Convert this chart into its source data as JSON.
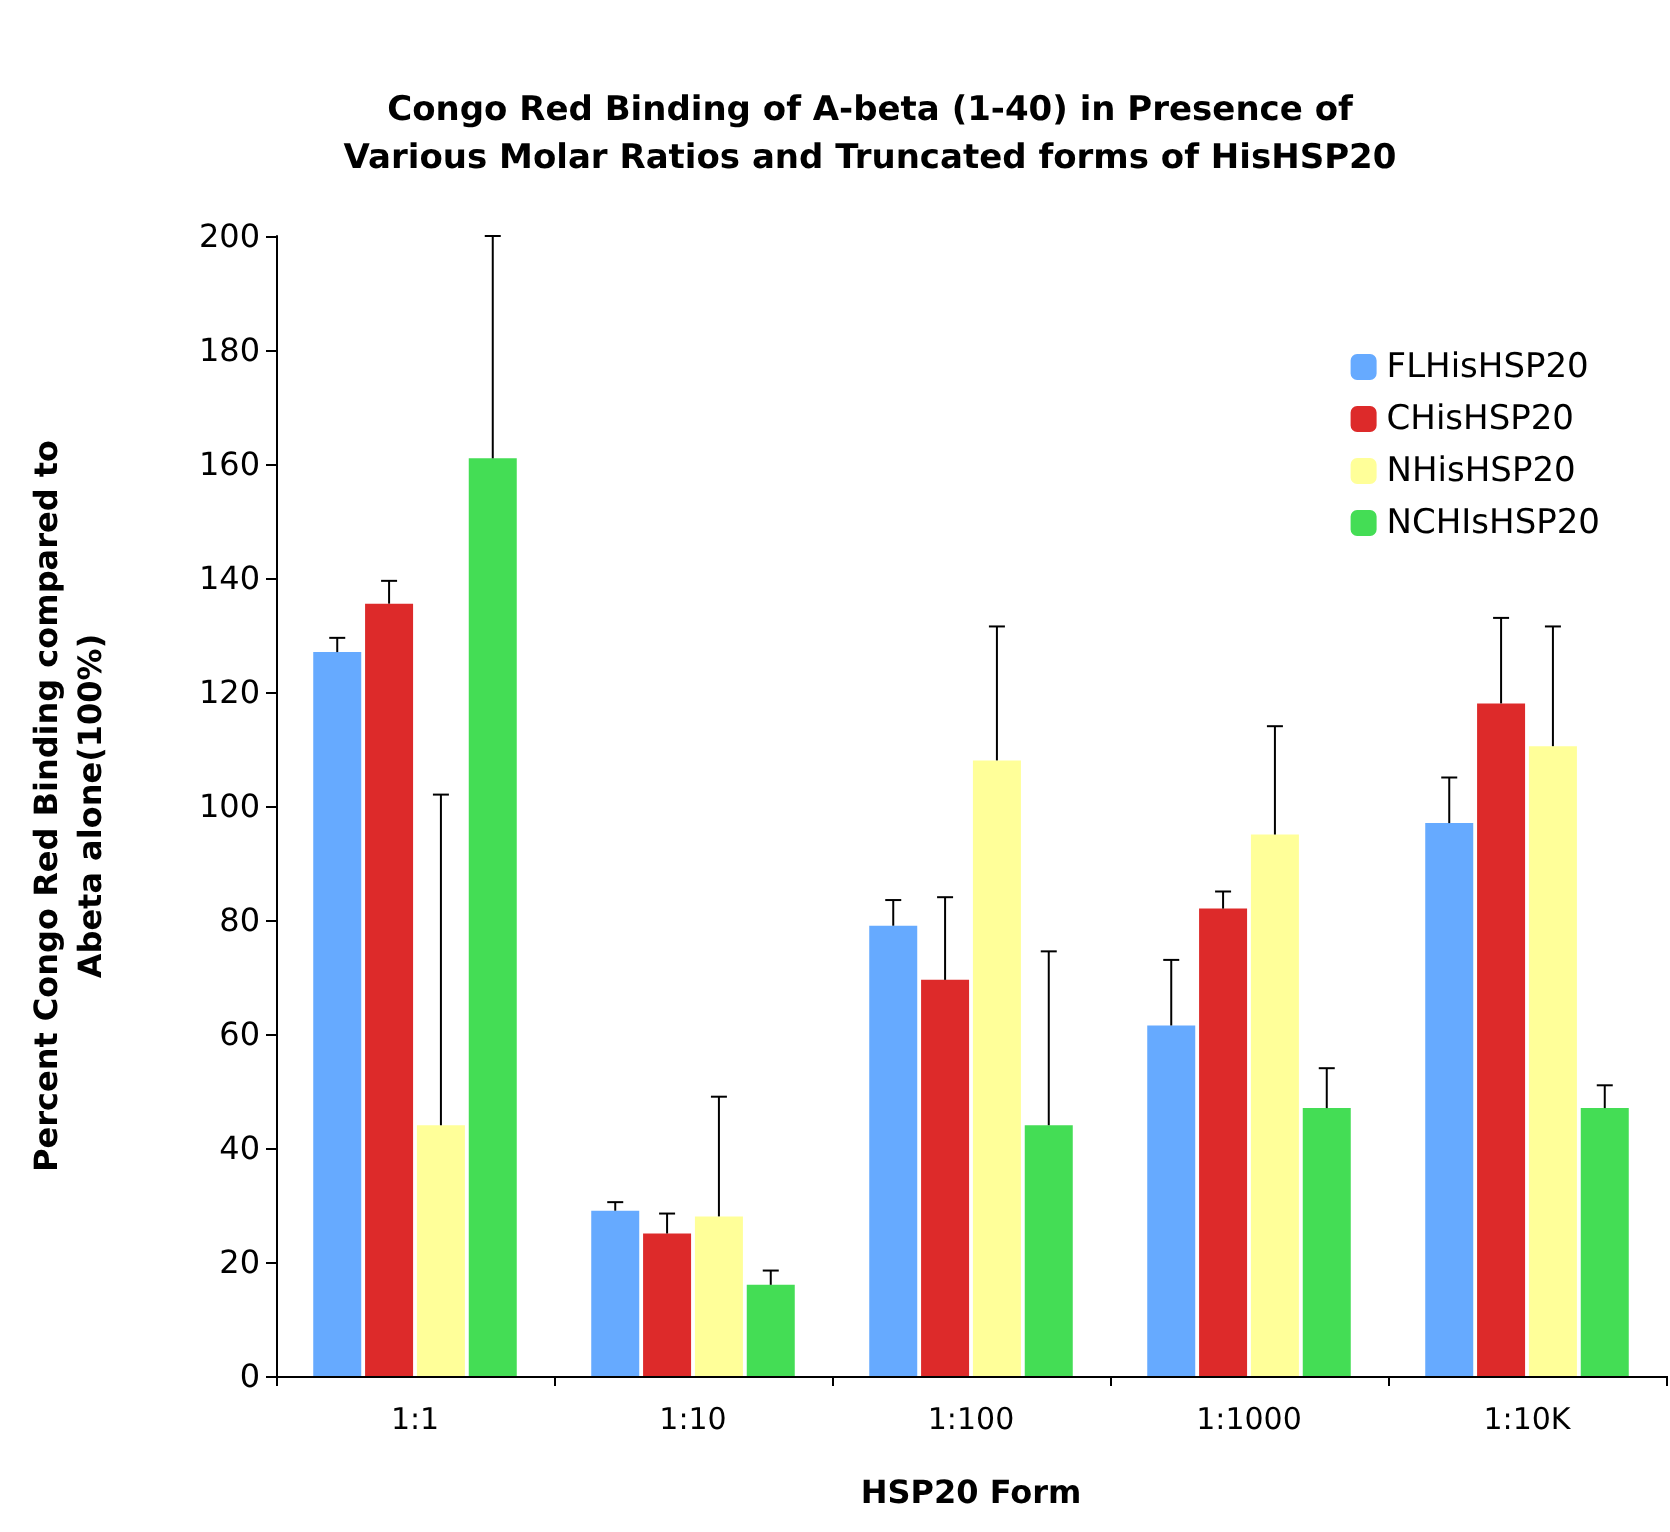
{
  "chart_data": {
    "type": "bar",
    "title": "Congo Red Binding of A-beta (1-40) in Presence of\nVarious Molar Ratios and Truncated forms of HisHSP20",
    "xlabel": "HSP20 Form",
    "ylabel": "Percent Congo Red Binding compared to\nAbeta alone(100%)",
    "categories": [
      "1:1",
      "1:10",
      "1:100",
      "1:1000",
      "1:10K"
    ],
    "series": [
      {
        "name": "FLHisHSP20",
        "color": "#66aaff",
        "values": [
          127,
          29,
          79,
          61.5,
          97
        ],
        "errors": [
          [
            127,
            129.5
          ],
          [
            29,
            30.5
          ],
          [
            79,
            83.5
          ],
          [
            61.5,
            73
          ],
          [
            97,
            105
          ]
        ]
      },
      {
        "name": "CHisHSP20",
        "color": "#dd2a2a",
        "values": [
          135.5,
          25,
          69.5,
          82,
          118
        ],
        "errors": [
          [
            135.5,
            139.5
          ],
          [
            25,
            28.5
          ],
          [
            69.5,
            84
          ],
          [
            82,
            85
          ],
          [
            118,
            133
          ]
        ]
      },
      {
        "name": "NHisHSP20",
        "color": "#ffff99",
        "values": [
          44,
          28,
          108,
          95,
          110.5
        ],
        "errors": [
          [
            44,
            102
          ],
          [
            28,
            49
          ],
          [
            108,
            131.5
          ],
          [
            95,
            114
          ],
          [
            110.5,
            131.5
          ]
        ]
      },
      {
        "name": "NCHIsHSP20",
        "color": "#44dd55",
        "values": [
          161,
          16,
          44,
          47,
          47
        ],
        "errors": [
          [
            161,
            200
          ],
          [
            16,
            18.5
          ],
          [
            44,
            74.5
          ],
          [
            47,
            54
          ],
          [
            47,
            51
          ]
        ]
      }
    ],
    "ylim": [
      0,
      200
    ],
    "yticks": [
      0,
      20,
      40,
      60,
      80,
      100,
      120,
      140,
      160,
      180,
      200
    ],
    "grid": false,
    "legend": "top right"
  }
}
